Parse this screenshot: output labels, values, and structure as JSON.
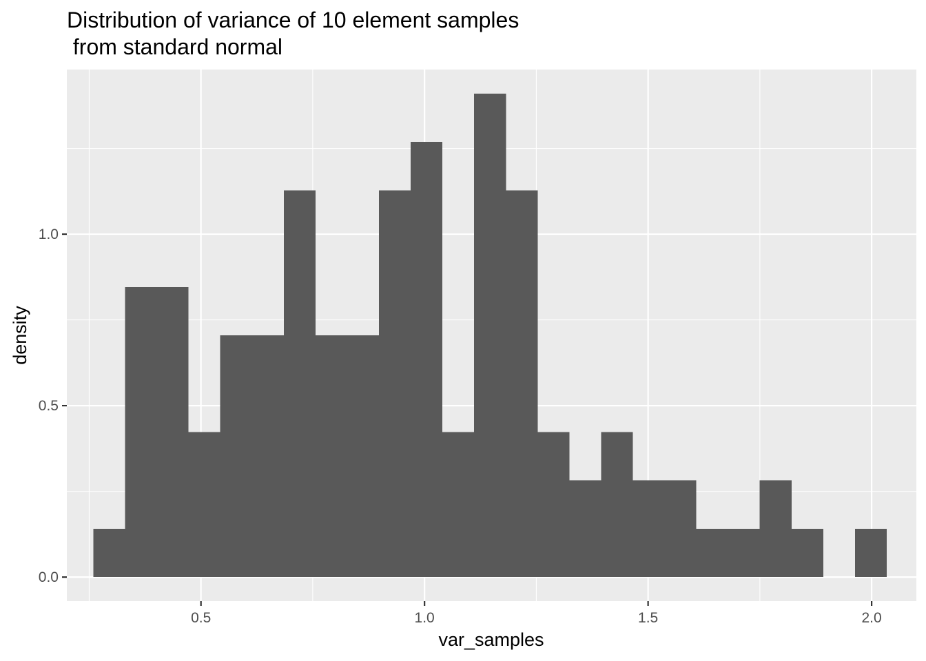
{
  "chart_data": {
    "type": "histogram",
    "title_line1": "Distribution of variance of 10 element samples",
    "title_line2": " from standard normal",
    "xlabel": "var_samples",
    "ylabel": "density",
    "xlim": [
      0.2,
      2.1
    ],
    "ylim": [
      -0.07,
      1.48
    ],
    "x_ticks": [
      0.5,
      1.0,
      1.5,
      2.0
    ],
    "x_tick_labels": [
      "0.5",
      "1.0",
      "1.5",
      "2.0"
    ],
    "y_ticks": [
      0.0,
      0.5,
      1.0
    ],
    "y_tick_labels": [
      "0.0",
      "0.5",
      "1.0"
    ],
    "grid": true,
    "bar_color": "#595959",
    "panel_background": "#ebebeb",
    "bins": [
      {
        "x0": 0.2592,
        "x1": 0.3301,
        "density": 0.141
      },
      {
        "x0": 0.3301,
        "x1": 0.4011,
        "density": 0.8459
      },
      {
        "x0": 0.4011,
        "x1": 0.4721,
        "density": 0.8459
      },
      {
        "x0": 0.4721,
        "x1": 0.5431,
        "density": 0.4229
      },
      {
        "x0": 0.5431,
        "x1": 0.6141,
        "density": 0.7049
      },
      {
        "x0": 0.6141,
        "x1": 0.6851,
        "density": 0.7049
      },
      {
        "x0": 0.6851,
        "x1": 0.7561,
        "density": 1.1278
      },
      {
        "x0": 0.7561,
        "x1": 0.827,
        "density": 0.7049
      },
      {
        "x0": 0.827,
        "x1": 0.898,
        "density": 0.7049
      },
      {
        "x0": 0.898,
        "x1": 0.969,
        "density": 1.1278
      },
      {
        "x0": 0.969,
        "x1": 1.04,
        "density": 1.2688
      },
      {
        "x0": 1.04,
        "x1": 1.111,
        "density": 0.4229
      },
      {
        "x0": 1.111,
        "x1": 1.182,
        "density": 1.4098
      },
      {
        "x0": 1.182,
        "x1": 1.2529,
        "density": 1.1278
      },
      {
        "x0": 1.2529,
        "x1": 1.3239,
        "density": 0.4229
      },
      {
        "x0": 1.3239,
        "x1": 1.3949,
        "density": 0.282
      },
      {
        "x0": 1.3949,
        "x1": 1.4659,
        "density": 0.4229
      },
      {
        "x0": 1.4659,
        "x1": 1.5369,
        "density": 0.282
      },
      {
        "x0": 1.5369,
        "x1": 1.6079,
        "density": 0.282
      },
      {
        "x0": 1.6079,
        "x1": 1.6789,
        "density": 0.141
      },
      {
        "x0": 1.6789,
        "x1": 1.7498,
        "density": 0.141
      },
      {
        "x0": 1.7498,
        "x1": 1.8208,
        "density": 0.282
      },
      {
        "x0": 1.8208,
        "x1": 1.8918,
        "density": 0.141
      },
      {
        "x0": 1.8918,
        "x1": 1.9628,
        "density": 0.0
      },
      {
        "x0": 1.9628,
        "x1": 2.0338,
        "density": 0.141
      }
    ]
  }
}
